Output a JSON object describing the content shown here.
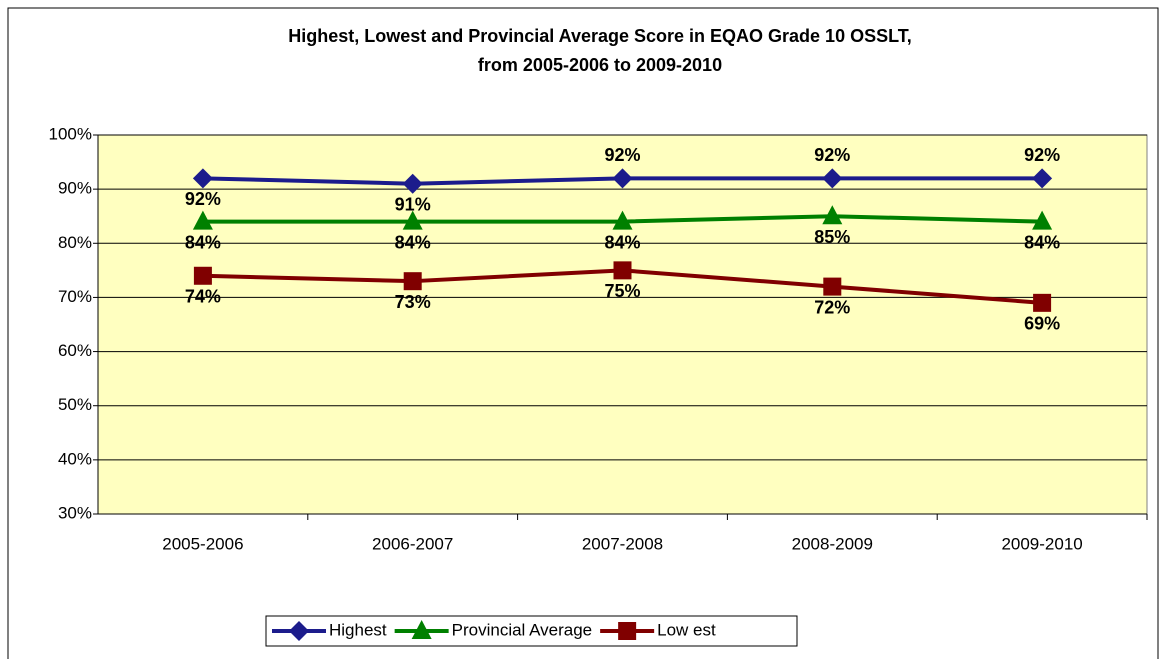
{
  "chart_data": {
    "type": "line",
    "title": [
      "Highest, Lowest and Provincial Average Score in EQAO Grade 10 OSSLT,",
      "from 2005-2006 to 2009-2010"
    ],
    "categories": [
      "2005-2006",
      "2006-2007",
      "2007-2008",
      "2008-2009",
      "2009-2010"
    ],
    "series": [
      {
        "name": "Highest",
        "color": "#1c1c8c",
        "marker": "diamond",
        "values": [
          92,
          91,
          92,
          92,
          92
        ],
        "value_labels": [
          "92%",
          "91%",
          "92%",
          "92%",
          "92%"
        ]
      },
      {
        "name": "Provincial Average",
        "color": "#008000",
        "marker": "triangle",
        "values": [
          84,
          84,
          84,
          85,
          84
        ],
        "value_labels": [
          "84%",
          "84%",
          "84%",
          "85%",
          "84%"
        ]
      },
      {
        "name": "Low est",
        "color": "#800000",
        "marker": "square",
        "values": [
          74,
          73,
          75,
          72,
          69
        ],
        "value_labels": [
          "74%",
          "73%",
          "75%",
          "72%",
          "69%"
        ]
      }
    ],
    "ylim": [
      30,
      100
    ],
    "yticks": [
      {
        "value": 30,
        "label": "30%"
      },
      {
        "value": 40,
        "label": "40%"
      },
      {
        "value": 50,
        "label": "50%"
      },
      {
        "value": 60,
        "label": "60%"
      },
      {
        "value": 70,
        "label": "70%"
      },
      {
        "value": 80,
        "label": "80%"
      },
      {
        "value": 90,
        "label": "90%"
      },
      {
        "value": 100,
        "label": "100%"
      }
    ],
    "grid": true,
    "legend": "bottom",
    "plot_background": "#ffffc0"
  }
}
